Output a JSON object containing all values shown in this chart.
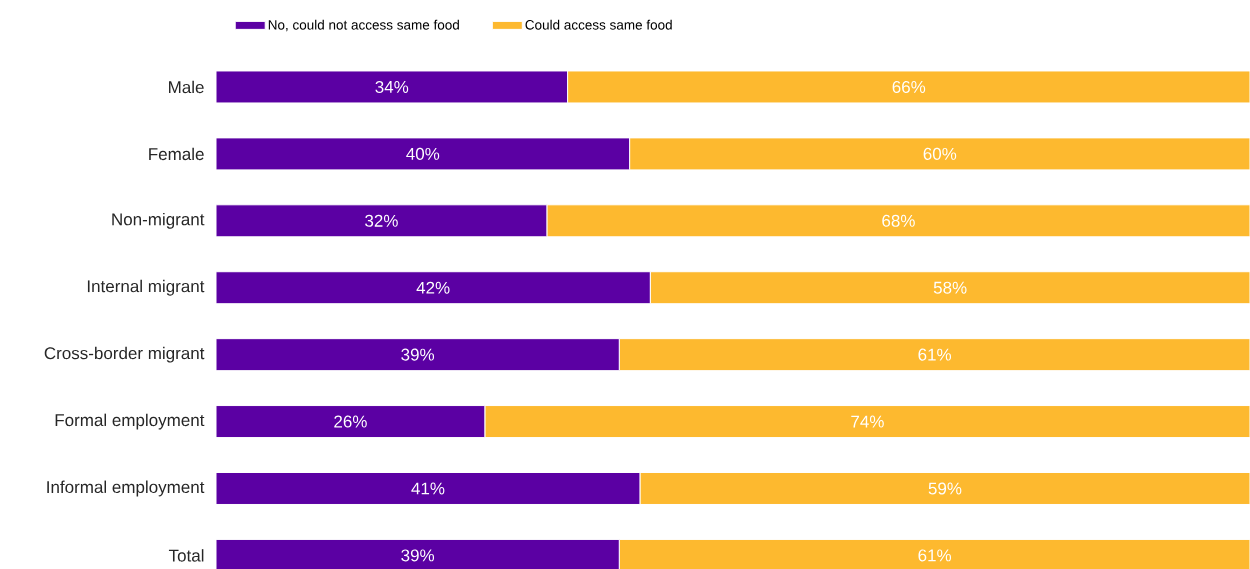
{
  "chart_data": {
    "type": "bar",
    "orientation": "horizontal",
    "stacked": true,
    "categories": [
      "Male",
      "Female",
      "Non-migrant",
      "Internal migrant",
      "Cross-border migrant",
      "Formal employment",
      "Informal employment",
      "Total"
    ],
    "series": [
      {
        "name": "No, could not access same food",
        "color": "#5b00a3",
        "values": [
          34,
          40,
          32,
          42,
          39,
          26,
          41,
          39
        ],
        "value_labels": [
          "34%",
          "40%",
          "32%",
          "42%",
          "39%",
          "26%",
          "41%",
          "39%"
        ]
      },
      {
        "name": "Could access same food",
        "color": "#fdb92f",
        "values": [
          66,
          60,
          68,
          58,
          61,
          74,
          59,
          61
        ],
        "value_labels": [
          "66%",
          "60%",
          "68%",
          "58%",
          "61%",
          "74%",
          "59%",
          "61%"
        ]
      }
    ],
    "tick_labels": "y",
    "legend": "top"
  }
}
